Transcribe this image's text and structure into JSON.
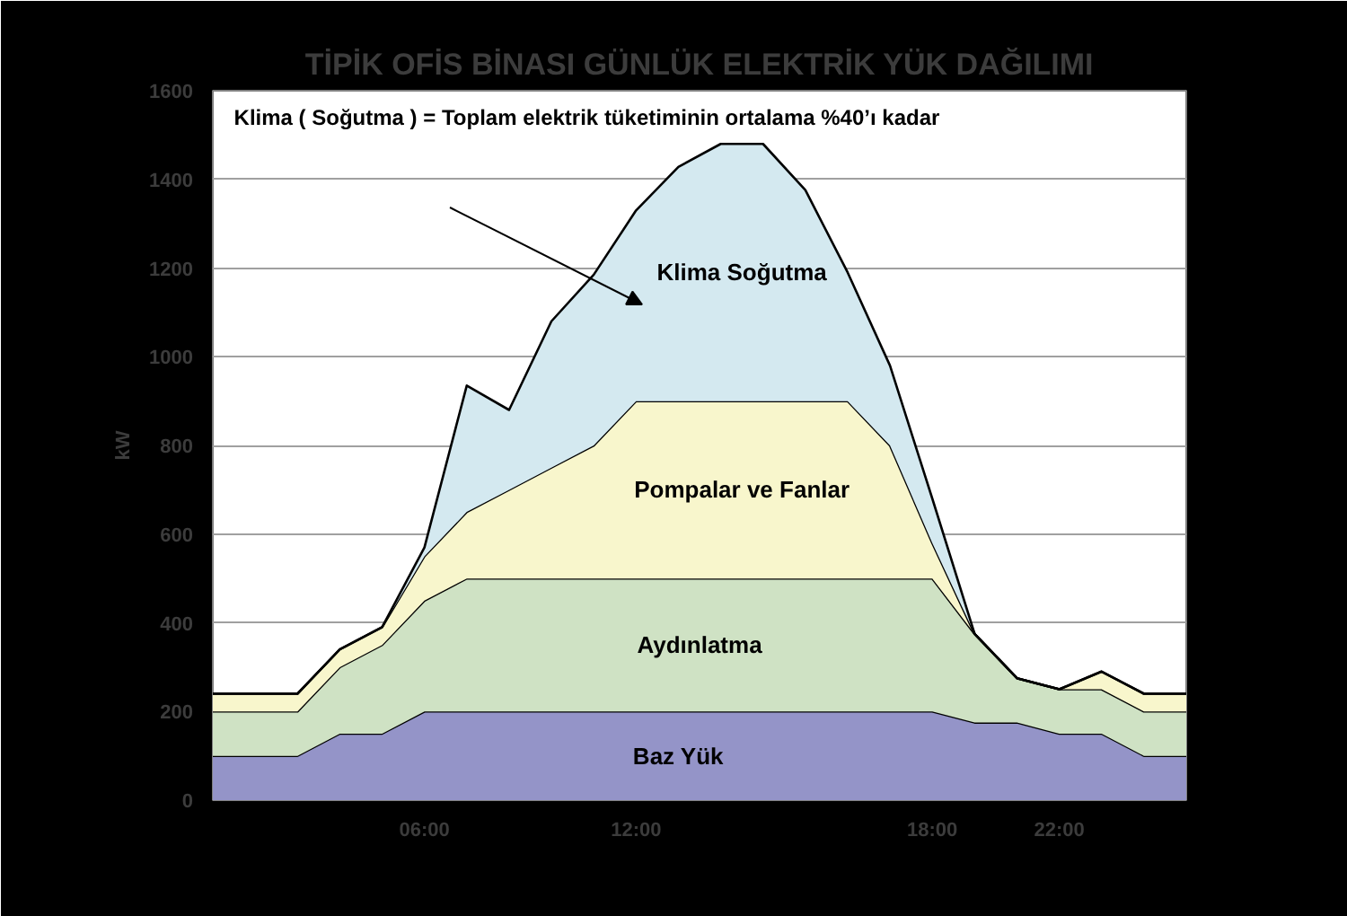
{
  "chart_data": {
    "type": "area",
    "stacked": true,
    "title": "TİPİK OFİS BİNASI GÜNLÜK ELEKTRİK YÜK DAĞILIMI",
    "ylabel": "kW",
    "categories": [
      null,
      null,
      null,
      null,
      null,
      "06:00",
      null,
      null,
      null,
      null,
      "12:00",
      null,
      null,
      null,
      null,
      null,
      null,
      "18:00",
      null,
      null,
      "22:00",
      null,
      null,
      null
    ],
    "series": [
      {
        "name": "Baz Yük",
        "color": "#9494c8",
        "values": [
          100,
          100,
          100,
          150,
          150,
          200,
          200,
          200,
          200,
          200,
          200,
          200,
          200,
          200,
          200,
          200,
          200,
          200,
          175,
          175,
          150,
          150,
          100,
          100
        ]
      },
      {
        "name": "Aydınlatma",
        "color": "#cfe2c4",
        "values": [
          100,
          100,
          100,
          150,
          200,
          250,
          300,
          300,
          300,
          300,
          300,
          300,
          300,
          300,
          300,
          300,
          300,
          300,
          200,
          100,
          100,
          100,
          100,
          100
        ]
      },
      {
        "name": "Pompalar ve Fanlar",
        "color": "#f8f6cc",
        "values": [
          40,
          40,
          40,
          40,
          40,
          100,
          150,
          200,
          250,
          300,
          400,
          400,
          400,
          400,
          400,
          400,
          300,
          80,
          0,
          0,
          0,
          40,
          40,
          40
        ]
      },
      {
        "name": "Klima Soğutma",
        "color": "#d4e9f0",
        "values": [
          0,
          0,
          0,
          0,
          0,
          20,
          285,
          180,
          330,
          385,
          430,
          528,
          580,
          580,
          476,
          290,
          180,
          100,
          0,
          0,
          0,
          0,
          0,
          0
        ]
      }
    ],
    "ylim": [
      0,
      1600
    ],
    "yticks": [
      0,
      200,
      400,
      600,
      800,
      1000,
      1200,
      1400,
      1600
    ],
    "grid": "y",
    "annotations": [
      "Klima ( Soğutma ) = Toplam elektrik tüketiminin ortalama %40’ı kadar"
    ]
  }
}
